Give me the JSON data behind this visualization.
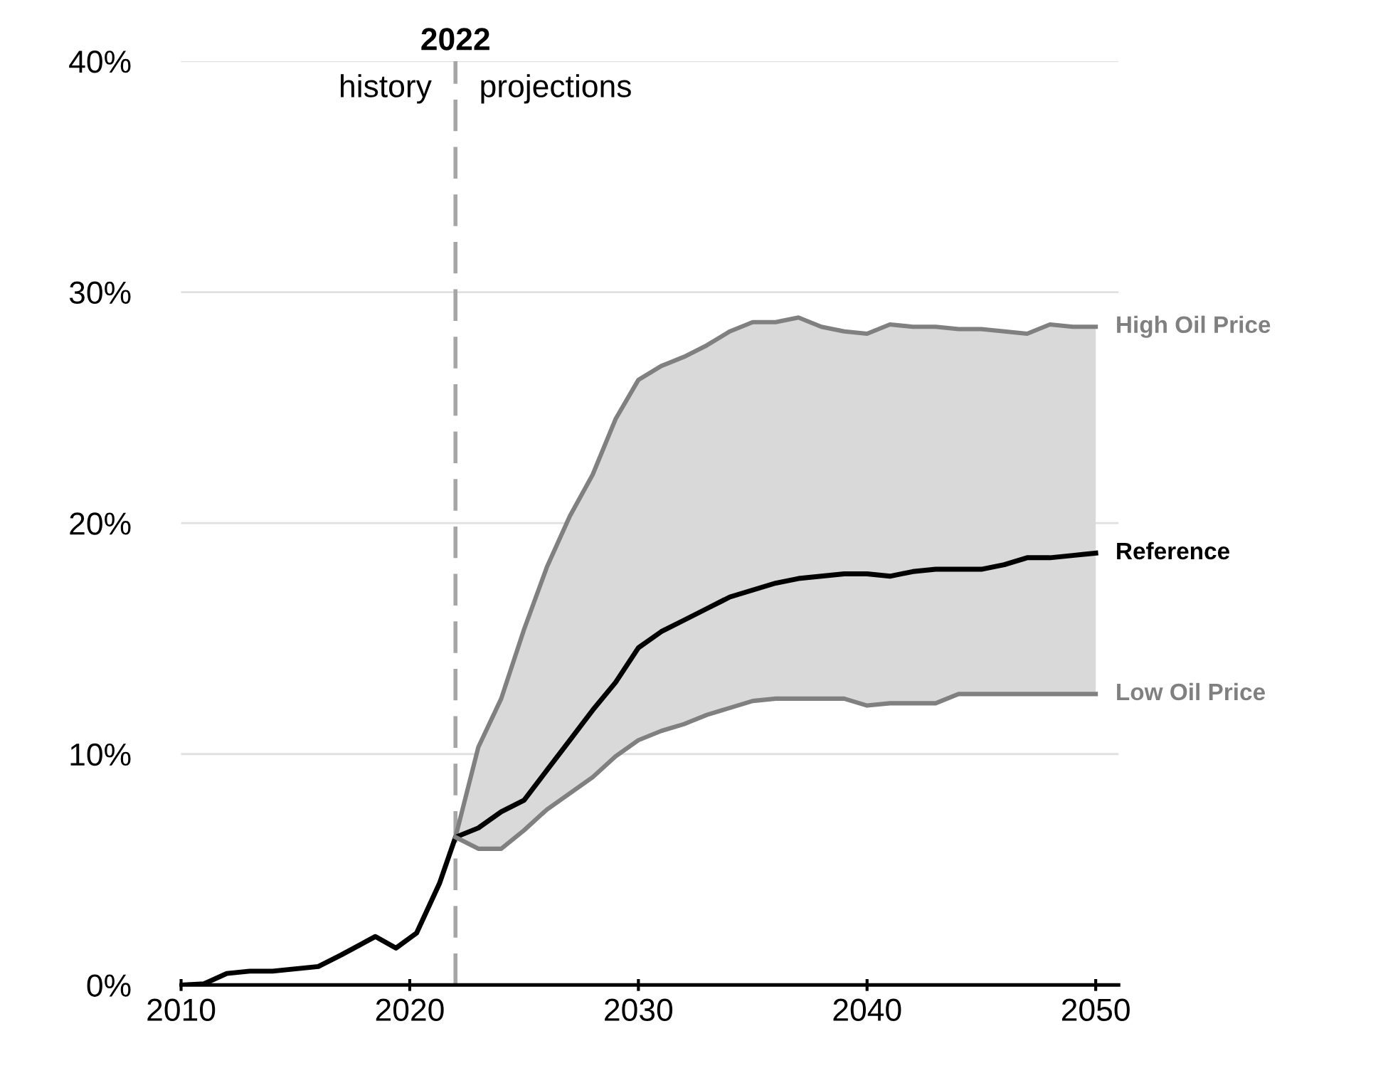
{
  "chart_data": {
    "type": "line",
    "x": [
      2010,
      2011,
      2012,
      2013,
      2014,
      2015,
      2016,
      2017,
      2018.5,
      2019.4,
      2020.3,
      2021.3,
      2022,
      2023,
      2024,
      2025,
      2026,
      2027,
      2028,
      2029,
      2030,
      2031,
      2032,
      2033,
      2034,
      2035,
      2036,
      2037,
      2038,
      2039,
      2040,
      2041,
      2042,
      2043,
      2044,
      2045,
      2046,
      2047,
      2048,
      2049,
      2050
    ],
    "series": [
      {
        "name": "High Oil Price",
        "color": "#808080",
        "x": [
          2022,
          2023,
          2024,
          2025,
          2026,
          2027,
          2028,
          2029,
          2030,
          2031,
          2032,
          2033,
          2034,
          2035,
          2036,
          2037,
          2038,
          2039,
          2040,
          2041,
          2042,
          2043,
          2044,
          2045,
          2046,
          2047,
          2048,
          2049,
          2050
        ],
        "values": [
          6.4,
          10.3,
          12.4,
          15.4,
          18.1,
          20.3,
          22.1,
          24.5,
          26.2,
          26.8,
          27.2,
          27.7,
          28.3,
          28.7,
          28.7,
          28.9,
          28.5,
          28.3,
          28.2,
          28.6,
          28.5,
          28.5,
          28.4,
          28.4,
          28.3,
          28.2,
          28.6,
          28.5,
          28.5
        ]
      },
      {
        "name": "Reference",
        "color": "#000000",
        "values": [
          0,
          0.05,
          0.5,
          0.6,
          0.6,
          0.7,
          0.8,
          1.3,
          2.1,
          1.6,
          2.25,
          4.4,
          6.4,
          6.8,
          7.5,
          8.0,
          9.3,
          10.6,
          11.9,
          13.1,
          14.6,
          15.3,
          15.8,
          16.3,
          16.8,
          17.1,
          17.4,
          17.6,
          17.7,
          17.8,
          17.8,
          17.7,
          17.9,
          18.0,
          18.0,
          18.0,
          18.2,
          18.5,
          18.5,
          18.6,
          18.7
        ],
        "lower": [
          null,
          null,
          null,
          null,
          null,
          null,
          null,
          null,
          null,
          null,
          null,
          null,
          6.4,
          5.9,
          5.9,
          6.7,
          7.6,
          8.3,
          9.0,
          9.9,
          10.6,
          11.0,
          11.3,
          11.7,
          12.0,
          12.3,
          12.4,
          12.4,
          12.4,
          12.4,
          12.1,
          12.2,
          12.2,
          12.2,
          12.6,
          12.6,
          12.6,
          12.6,
          12.6,
          12.6,
          12.6
        ],
        "upper": [
          null,
          null,
          null,
          null,
          null,
          null,
          null,
          null,
          null,
          null,
          null,
          null,
          6.4,
          10.3,
          12.4,
          15.4,
          18.1,
          20.3,
          22.1,
          24.5,
          26.2,
          26.8,
          27.2,
          27.7,
          28.3,
          28.7,
          28.7,
          28.9,
          28.5,
          28.3,
          28.2,
          28.6,
          28.5,
          28.5,
          28.4,
          28.4,
          28.3,
          28.2,
          28.6,
          28.5,
          28.5
        ]
      },
      {
        "name": "Low Oil Price",
        "color": "#808080",
        "x": [
          2022,
          2023,
          2024,
          2025,
          2026,
          2027,
          2028,
          2029,
          2030,
          2031,
          2032,
          2033,
          2034,
          2035,
          2036,
          2037,
          2038,
          2039,
          2040,
          2041,
          2042,
          2043,
          2044,
          2045,
          2046,
          2047,
          2048,
          2049,
          2050
        ],
        "values": [
          6.4,
          5.9,
          5.9,
          6.7,
          7.6,
          8.3,
          9.0,
          9.9,
          10.6,
          11.0,
          11.3,
          11.7,
          12.0,
          12.3,
          12.4,
          12.4,
          12.4,
          12.4,
          12.1,
          12.2,
          12.2,
          12.2,
          12.6,
          12.6,
          12.6,
          12.6,
          12.6,
          12.6,
          12.6
        ]
      }
    ],
    "xlim": [
      2010,
      2051
    ],
    "xticks": [
      2010,
      2020,
      2030,
      2040,
      2050
    ],
    "ylim": [
      0,
      40
    ],
    "yticks": [
      {
        "value": 0,
        "label": "0%"
      },
      {
        "value": 10,
        "label": "10%"
      },
      {
        "value": 20,
        "label": "20%"
      },
      {
        "value": 30,
        "label": "30%"
      },
      {
        "value": 40,
        "label": "40%"
      }
    ],
    "grid": "y",
    "ref_lines": [
      {
        "axis": "x",
        "value": 2022,
        "label": "2022",
        "color": "#a6a6a6",
        "line_style": "dashed"
      }
    ],
    "annotations": [
      "history",
      "projections"
    ]
  }
}
